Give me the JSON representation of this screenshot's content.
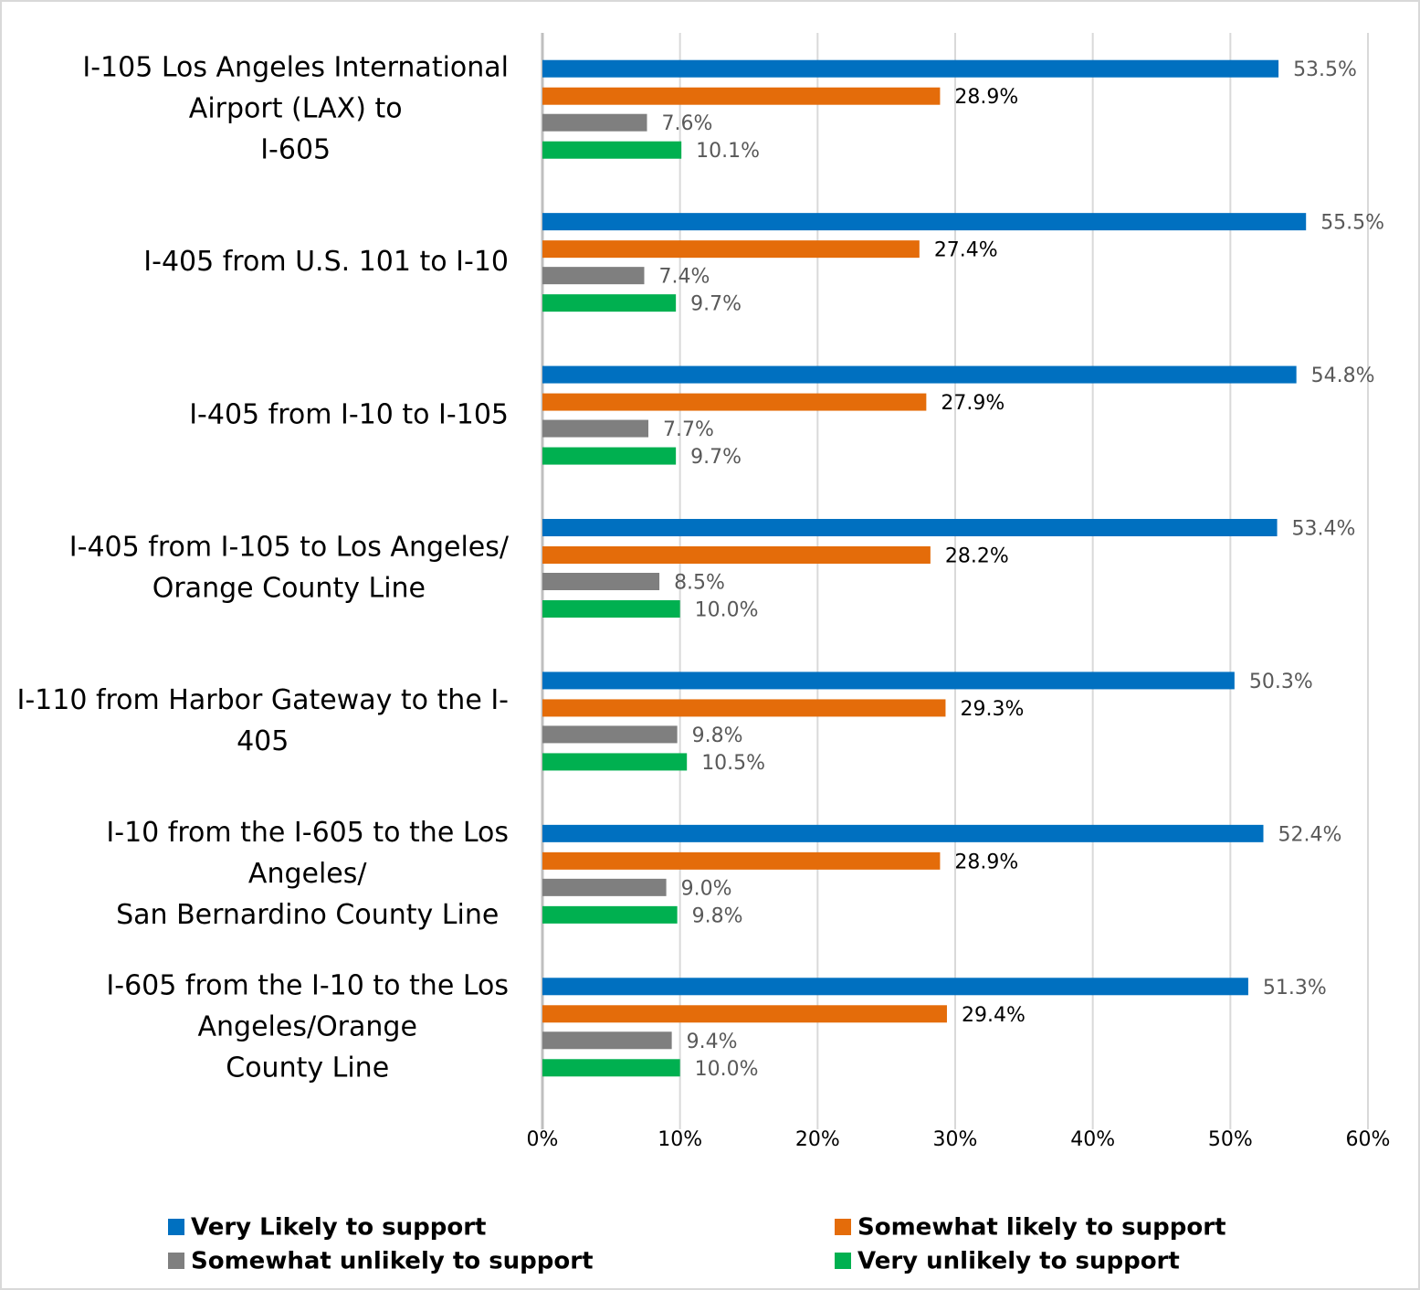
{
  "chart_data": {
    "type": "hbar",
    "categories": [
      "I-105 Los Angeles International\nAirport (LAX) to\nI-605",
      "I-405 from U.S. 101 to I-10",
      "I-405 from I-10 to I-105",
      "I-405 from I-105 to Los Angeles/\nOrange County Line",
      "I-110 from Harbor Gateway to the I-\n405",
      "I-10 from the I-605 to the Los\nAngeles/\nSan Bernardino County Line",
      "I-605 from the I-10 to the Los\nAngeles/Orange\nCounty Line"
    ],
    "series": [
      {
        "name": "Very Likely to support",
        "color": "#0070c0",
        "values": [
          53.5,
          55.5,
          54.8,
          53.4,
          50.3,
          52.4,
          51.3
        ],
        "value_labels": [
          "53.5%",
          "55.5%",
          "54.8%",
          "53.4%",
          "50.3%",
          "52.4%",
          "51.3%"
        ]
      },
      {
        "name": "Somewhat likely to support",
        "color": "#e46c0a",
        "values": [
          28.9,
          27.4,
          27.9,
          28.2,
          29.3,
          28.9,
          29.4
        ],
        "value_labels": [
          "28.9%",
          "27.4%",
          "27.9%",
          "28.2%",
          "29.3%",
          "28.9%",
          "29.4%"
        ]
      },
      {
        "name": "Somewhat unlikely to support",
        "color": "#7f7f7f",
        "values": [
          7.6,
          7.4,
          7.7,
          8.5,
          9.8,
          9.0,
          9.4
        ],
        "value_labels": [
          "7.6%",
          "7.4%",
          "7.7%",
          "8.5%",
          "9.8%",
          "9.0%",
          "9.4%"
        ]
      },
      {
        "name": "Very unlikely to support",
        "color": "#00b050",
        "values": [
          10.1,
          9.7,
          9.7,
          10.0,
          10.5,
          9.8,
          10.0
        ],
        "value_labels": [
          "10.1%",
          "9.7%",
          "9.7%",
          "10.0%",
          "10.5%",
          "9.8%",
          "10.0%"
        ]
      }
    ],
    "xlim": [
      0,
      60
    ],
    "xticks": [
      {
        "value": 0,
        "label": "0%"
      },
      {
        "value": 10,
        "label": "10%"
      },
      {
        "value": 20,
        "label": "20%"
      },
      {
        "value": 30,
        "label": "30%"
      },
      {
        "value": 40,
        "label": "40%"
      },
      {
        "value": 50,
        "label": "50%"
      },
      {
        "value": 60,
        "label": "60%"
      }
    ],
    "grid": true,
    "legend": "bottom"
  }
}
